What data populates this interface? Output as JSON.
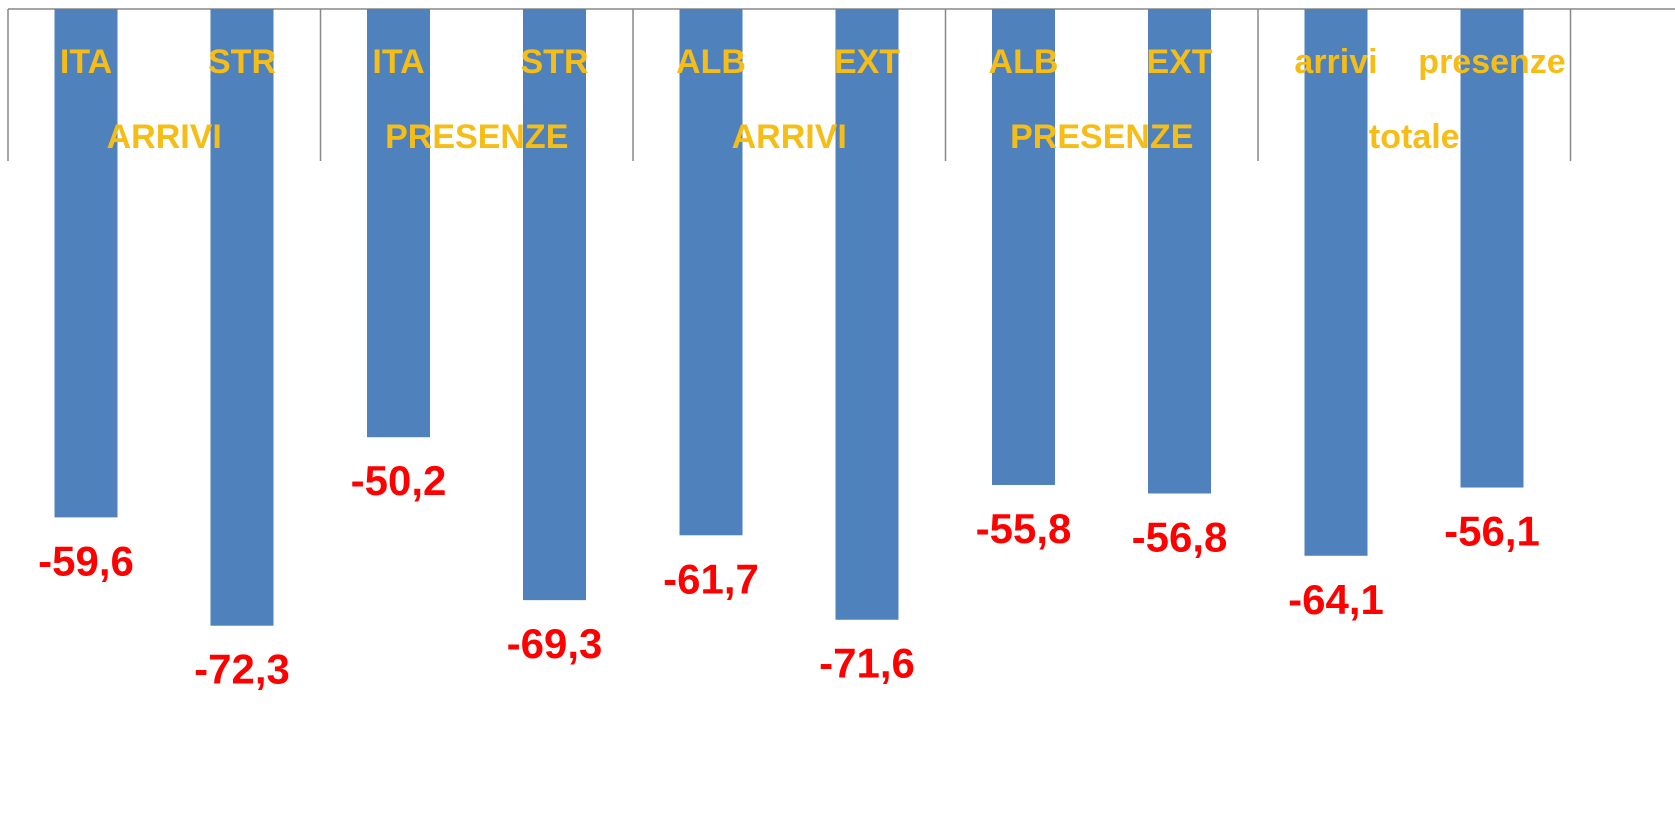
{
  "chart_data": {
    "type": "bar",
    "orientation": "vertical",
    "categories": [
      "ITA",
      "STR",
      "ITA",
      "STR",
      "ALB",
      "EXT",
      "ALB",
      "EXT",
      "arrivi",
      "presenze"
    ],
    "groups": [
      {
        "label": "ARRIVI",
        "categories": [
          "ITA",
          "STR"
        ]
      },
      {
        "label": "PRESENZE",
        "categories": [
          "ITA",
          "STR"
        ]
      },
      {
        "label": "ARRIVI",
        "categories": [
          "ALB",
          "EXT"
        ]
      },
      {
        "label": "PRESENZE",
        "categories": [
          "ALB",
          "EXT"
        ]
      },
      {
        "label": "totale",
        "categories": [
          "arrivi",
          "presenze"
        ]
      }
    ],
    "series": [
      {
        "values": [
          -59.6,
          -72.3,
          -50.2,
          -69.3,
          -61.7,
          -71.6,
          -55.8,
          -56.8,
          -64.1,
          -56.1
        ],
        "labels": [
          "-59,6",
          "-72,3",
          "-50,2",
          "-69,3",
          "-61,7",
          "-71,6",
          "-55,8",
          "-56,8",
          "-64,1",
          "-56,1"
        ]
      }
    ],
    "ylim": [
      -80,
      0
    ],
    "axis_position": "top",
    "legend": "none",
    "grid": false,
    "colors": {
      "bar": "#4f81bd",
      "category_label": "#f6bd16",
      "value_label": "#ff0000",
      "axis": "#888888"
    }
  }
}
